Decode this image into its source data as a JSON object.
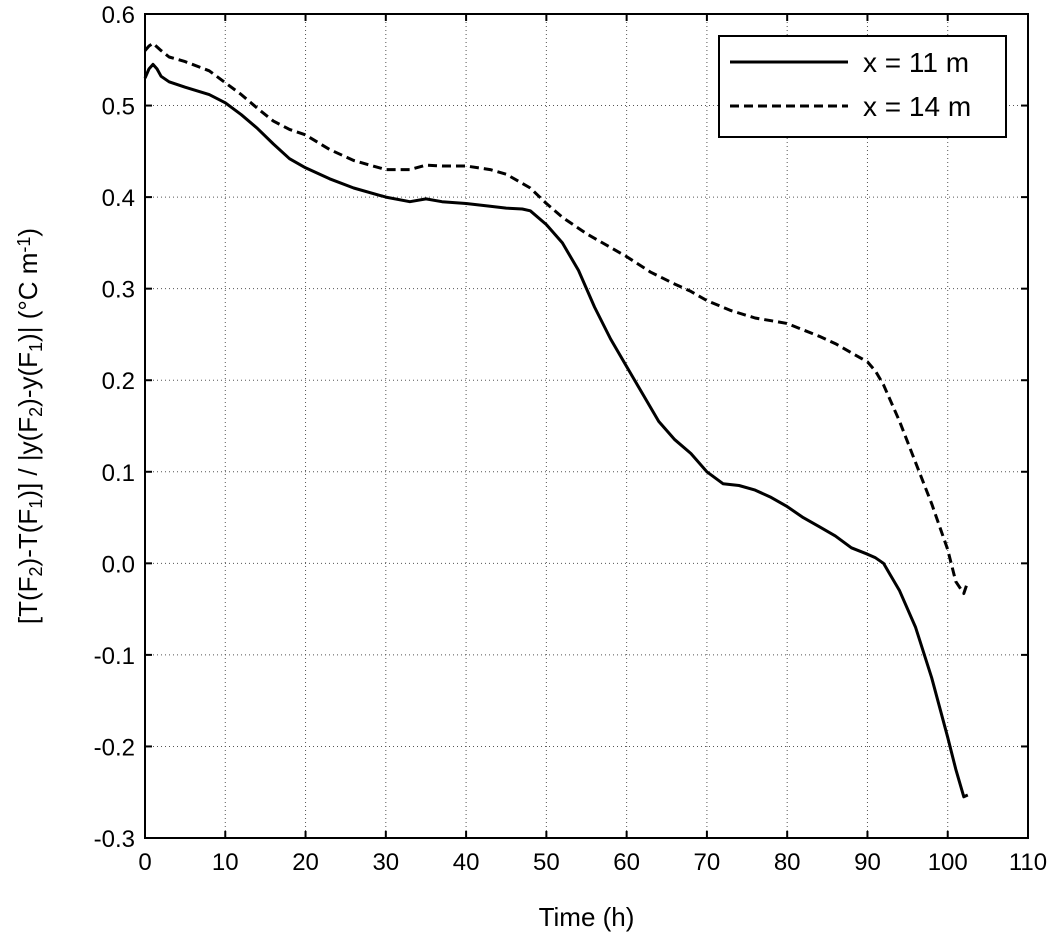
{
  "chart_data": {
    "type": "line",
    "xlabel": "Time (h)",
    "ylabel_parts": {
      "a": "[T(F",
      "sub_a": "2",
      "b": ")-T(F",
      "sub_b": "1",
      "c": ")] / |y(F",
      "sub_c": "2",
      "d": ")-y(F",
      "sub_d": "1",
      "e": ")| (°C m",
      "sup_e": "-1",
      "f": ")"
    },
    "xlim": [
      0,
      110
    ],
    "ylim": [
      -0.3,
      0.6
    ],
    "xticks": [
      "0",
      "10",
      "20",
      "30",
      "40",
      "50",
      "60",
      "70",
      "80",
      "90",
      "100",
      "110"
    ],
    "yticks": [
      "-0.3",
      "-0.2",
      "-0.1",
      "0.0",
      "0.1",
      "0.2",
      "0.3",
      "0.4",
      "0.5",
      "0.6"
    ],
    "grid": true,
    "legend_position": "top-right",
    "series": [
      {
        "name": "x = 11 m",
        "style": "solid",
        "x": [
          0,
          0.5,
          1,
          1.5,
          2,
          3,
          5,
          8,
          10,
          12,
          14,
          16,
          18,
          20,
          23,
          26,
          30,
          33,
          35,
          37,
          40,
          43,
          45,
          47,
          48,
          50,
          52,
          54,
          56,
          58,
          60,
          62,
          64,
          66,
          68,
          70,
          72,
          74,
          76,
          78,
          80,
          82,
          84,
          86,
          88,
          90,
          91,
          92,
          94,
          96,
          98,
          100,
          101,
          102,
          102.5
        ],
        "y": [
          0.53,
          0.54,
          0.545,
          0.54,
          0.532,
          0.526,
          0.52,
          0.512,
          0.503,
          0.49,
          0.475,
          0.458,
          0.442,
          0.432,
          0.42,
          0.41,
          0.4,
          0.395,
          0.398,
          0.395,
          0.393,
          0.39,
          0.388,
          0.387,
          0.385,
          0.37,
          0.35,
          0.32,
          0.28,
          0.245,
          0.215,
          0.185,
          0.155,
          0.135,
          0.12,
          0.1,
          0.087,
          0.085,
          0.08,
          0.072,
          0.062,
          0.05,
          0.04,
          0.03,
          0.017,
          0.01,
          0.006,
          0.0,
          -0.03,
          -0.07,
          -0.125,
          -0.19,
          -0.225,
          -0.255,
          -0.253
        ]
      },
      {
        "name": "x = 14 m",
        "style": "dashed",
        "x": [
          0,
          0.5,
          1,
          2,
          3,
          5,
          8,
          10,
          12,
          14,
          16,
          18,
          20,
          23,
          26,
          30,
          33,
          35,
          37,
          40,
          43,
          45,
          48,
          50,
          52,
          55,
          58,
          60,
          63,
          66,
          68,
          70,
          73,
          76,
          78,
          80,
          82,
          84,
          86,
          88,
          90,
          91,
          92,
          94,
          96,
          98,
          100,
          101,
          102,
          102.5
        ],
        "y": [
          0.56,
          0.565,
          0.568,
          0.56,
          0.553,
          0.548,
          0.538,
          0.525,
          0.512,
          0.497,
          0.483,
          0.474,
          0.468,
          0.452,
          0.44,
          0.43,
          0.43,
          0.435,
          0.434,
          0.434,
          0.43,
          0.425,
          0.41,
          0.393,
          0.378,
          0.36,
          0.345,
          0.335,
          0.318,
          0.305,
          0.297,
          0.287,
          0.276,
          0.268,
          0.265,
          0.262,
          0.255,
          0.248,
          0.24,
          0.23,
          0.22,
          0.21,
          0.195,
          0.155,
          0.11,
          0.065,
          0.015,
          -0.02,
          -0.033,
          -0.02
        ]
      }
    ]
  }
}
